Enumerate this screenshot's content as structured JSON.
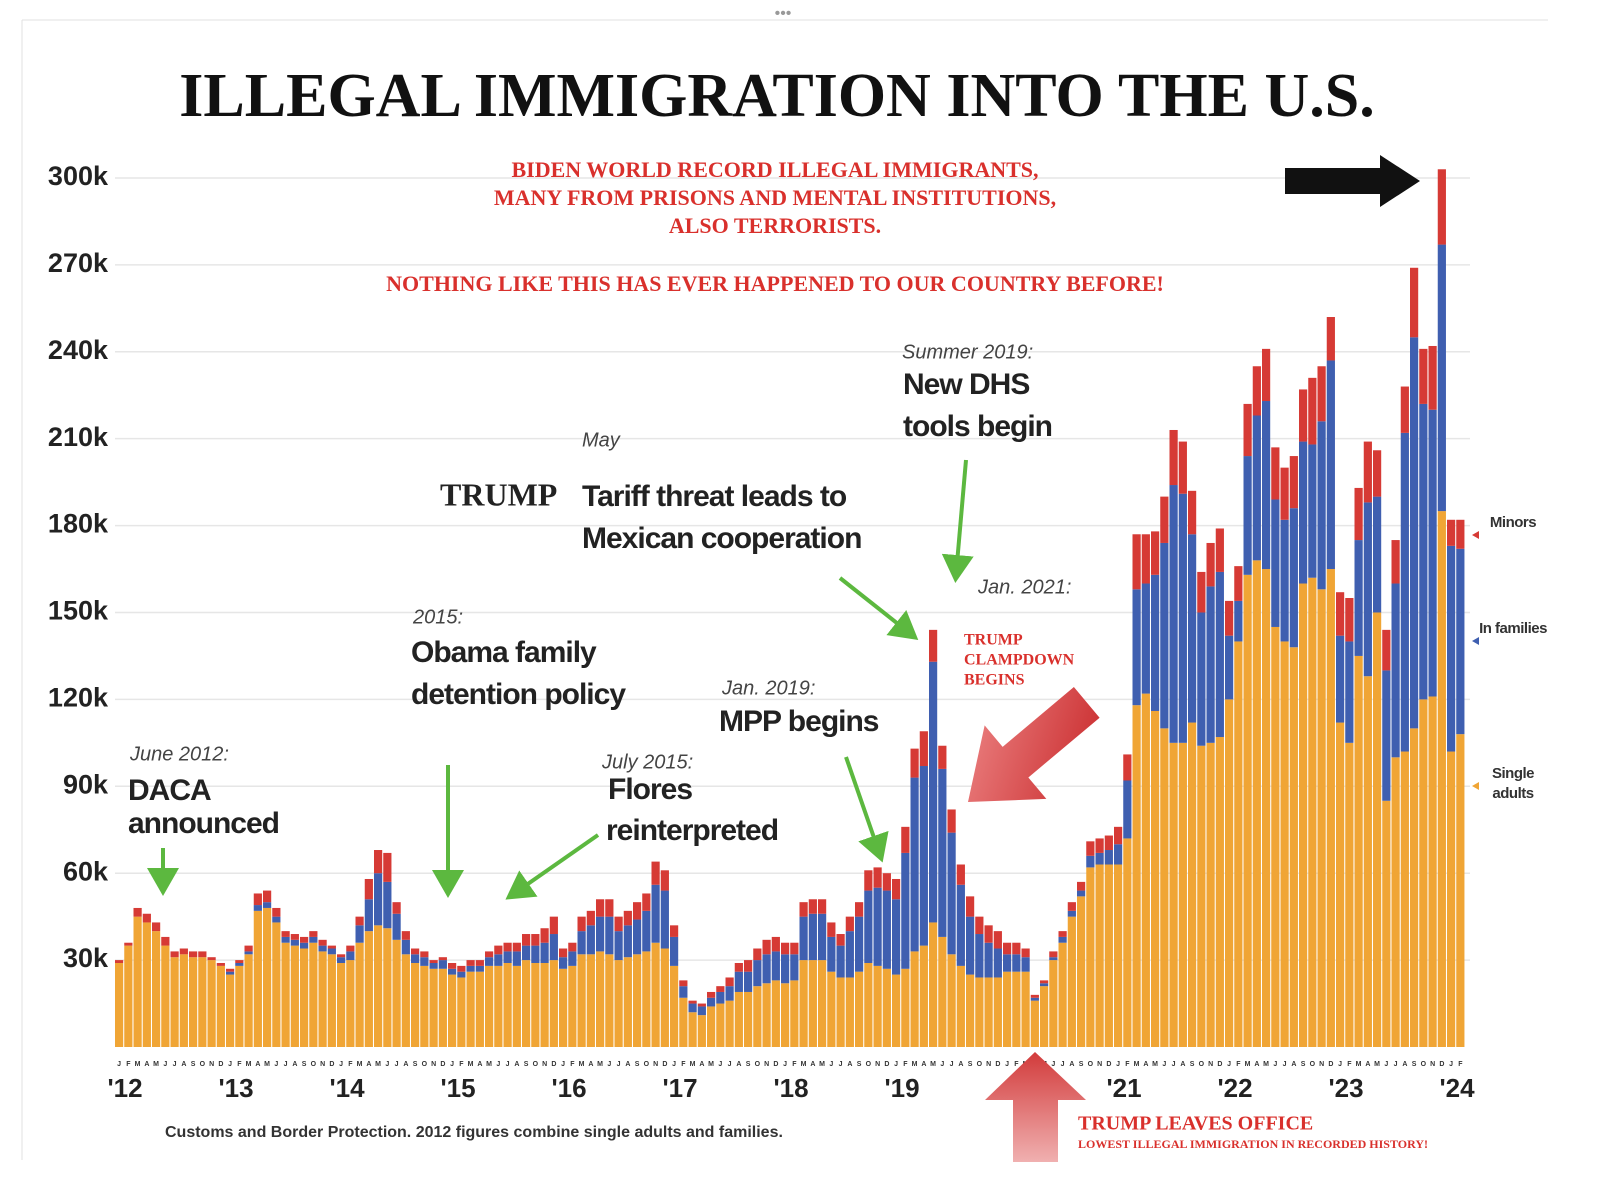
{
  "chart_data": {
    "type": "stacked-bar",
    "title": "ILLEGAL IMMIGRATION INTO THE U.S.",
    "source": "Customs and Border Protection. 2012 figures combine single adults and families.",
    "annotations": [
      "BIDEN WORLD RECORD ILLEGAL IMMIGRANTS,",
      "MANY FROM PRISONS AND MENTAL INSTITUTIONS,",
      "ALSO TERRORISTS.",
      "NOTHING LIKE THIS HAS EVER HAPPENED TO OUR COUNTRY BEFORE!",
      "June 2012:",
      "DACA",
      "announced",
      "2015:",
      "Obama family",
      "detention policy",
      "July 2015:",
      "Flores",
      "reinterpreted",
      "May",
      "TRUMP",
      "Tariff threat leads to",
      "Mexican cooperation",
      "Jan. 2019:",
      "MPP begins",
      "Summer 2019:",
      "New DHS",
      "tools begin",
      "Jan. 2021:",
      "TRUMP",
      "CLAMPDOWN",
      "BEGINS",
      "TRUMP LEAVES OFFICE",
      "LOWEST ILLEGAL IMMIGRATION IN RECORDED HISTORY!"
    ],
    "categories": [
      "J",
      "F",
      "M",
      "A",
      "M",
      "J",
      "J",
      "A",
      "S",
      "O",
      "N",
      "D",
      "J",
      "F",
      "M",
      "A",
      "M",
      "J",
      "J",
      "A",
      "S",
      "O",
      "N",
      "D",
      "J",
      "F",
      "M",
      "A",
      "M",
      "J",
      "J",
      "A",
      "S",
      "O",
      "N",
      "D",
      "J",
      "F",
      "M",
      "A",
      "M",
      "J",
      "J",
      "A",
      "S",
      "O",
      "N",
      "D",
      "J",
      "F",
      "M",
      "A",
      "M",
      "J",
      "J",
      "A",
      "S",
      "O",
      "N",
      "D",
      "J",
      "F",
      "M",
      "A",
      "M",
      "J",
      "J",
      "A",
      "S",
      "O",
      "N",
      "D",
      "J",
      "F",
      "M",
      "A",
      "M",
      "J",
      "J",
      "A",
      "S",
      "O",
      "N",
      "D",
      "J",
      "F",
      "M",
      "A",
      "M",
      "J",
      "J",
      "A",
      "S",
      "O",
      "N",
      "D",
      "J",
      "F",
      "M",
      "A",
      "M",
      "J",
      "J",
      "A",
      "S",
      "O",
      "N",
      "D",
      "J",
      "F",
      "M",
      "A",
      "M",
      "J",
      "J",
      "A",
      "S",
      "O",
      "N",
      "D",
      "J",
      "F",
      "M",
      "A",
      "M",
      "J",
      "J",
      "A",
      "S",
      "O",
      "N",
      "D",
      "J",
      "F",
      "M",
      "A",
      "M",
      "J",
      "J",
      "A",
      "S",
      "O",
      "N",
      "D",
      "J",
      "F"
    ],
    "year_labels": [
      "'12",
      "'13",
      "'14",
      "'15",
      "'16",
      "'17",
      "'18",
      "'19",
      null,
      "'21",
      "'22",
      "'23",
      "'24"
    ],
    "series": [
      {
        "name": "Single adults",
        "color": "#f0a535",
        "values": [
          29,
          35,
          45,
          43,
          40,
          35,
          31,
          32,
          31,
          31,
          30,
          28,
          25,
          28,
          32,
          47,
          48,
          43,
          36,
          35,
          34,
          36,
          33,
          32,
          29,
          30,
          36,
          40,
          42,
          41,
          37,
          32,
          29,
          28,
          27,
          27,
          25,
          24,
          26,
          26,
          28,
          28,
          29,
          28,
          30,
          29,
          29,
          30,
          27,
          28,
          32,
          32,
          33,
          32,
          30,
          31,
          32,
          33,
          36,
          34,
          28,
          17,
          12,
          11,
          14,
          15,
          16,
          19,
          19,
          21,
          22,
          23,
          22,
          23,
          30,
          30,
          30,
          26,
          24,
          24,
          26,
          29,
          28,
          27,
          25,
          27,
          33,
          35,
          43,
          38,
          32,
          28,
          25,
          24,
          24,
          24,
          26,
          26,
          26,
          16,
          21,
          30,
          36,
          45,
          52,
          62,
          63,
          63,
          63,
          72,
          118,
          122,
          116,
          110,
          105,
          105,
          112,
          104,
          105,
          107,
          120,
          140,
          163,
          168,
          165,
          145,
          140,
          138,
          160,
          162,
          158,
          165,
          112,
          105,
          135,
          128,
          150,
          85,
          100,
          102,
          110,
          120,
          121,
          185,
          102,
          108
        ]
      },
      {
        "name": "In families",
        "color": "#3f5fb0",
        "values": [
          0,
          0,
          0,
          0,
          0,
          0,
          0,
          0,
          0,
          0,
          0,
          0,
          1,
          1,
          1,
          2,
          2,
          2,
          2,
          2,
          2,
          2,
          2,
          2,
          2,
          3,
          6,
          11,
          18,
          16,
          9,
          5,
          3,
          3,
          2,
          3,
          2,
          2,
          2,
          2,
          3,
          4,
          4,
          5,
          5,
          6,
          7,
          9,
          4,
          5,
          8,
          10,
          12,
          13,
          10,
          11,
          12,
          14,
          20,
          20,
          10,
          4,
          3,
          3,
          3,
          4,
          5,
          7,
          7,
          9,
          10,
          10,
          10,
          9,
          15,
          16,
          16,
          12,
          11,
          16,
          19,
          25,
          27,
          27,
          26,
          40,
          60,
          62,
          90,
          58,
          42,
          28,
          20,
          15,
          12,
          10,
          6,
          6,
          5,
          1,
          1,
          1,
          2,
          2,
          2,
          4,
          4,
          5,
          7,
          20,
          40,
          38,
          47,
          64,
          89,
          86,
          65,
          46,
          54,
          57,
          22,
          14,
          41,
          50,
          58,
          44,
          42,
          48,
          49,
          46,
          58,
          72,
          30,
          35,
          40,
          60,
          40,
          45,
          60,
          110,
          135,
          102,
          99,
          92,
          71,
          64
        ]
      },
      {
        "name": "Minors",
        "color": "#d63a35",
        "values": [
          1,
          1,
          3,
          3,
          3,
          3,
          2,
          2,
          2,
          2,
          1,
          1,
          1,
          1,
          2,
          4,
          4,
          3,
          2,
          2,
          2,
          2,
          2,
          1,
          1,
          2,
          3,
          7,
          8,
          10,
          4,
          3,
          2,
          2,
          1,
          1,
          2,
          2,
          2,
          2,
          2,
          3,
          3,
          3,
          4,
          4,
          5,
          6,
          3,
          3,
          5,
          5,
          6,
          6,
          5,
          5,
          6,
          6,
          8,
          7,
          4,
          2,
          1,
          1,
          2,
          2,
          3,
          3,
          4,
          4,
          5,
          5,
          4,
          4,
          5,
          5,
          5,
          5,
          4,
          5,
          5,
          7,
          7,
          6,
          7,
          9,
          10,
          12,
          11,
          8,
          8,
          7,
          7,
          6,
          6,
          6,
          4,
          4,
          3,
          1,
          1,
          2,
          2,
          3,
          3,
          5,
          5,
          5,
          6,
          9,
          19,
          17,
          15,
          16,
          19,
          18,
          15,
          14,
          15,
          15,
          12,
          12,
          18,
          17,
          18,
          18,
          18,
          18,
          18,
          23,
          19,
          15,
          15,
          15,
          18,
          21,
          16,
          14,
          15,
          16,
          24,
          19,
          22,
          26,
          9,
          10
        ]
      }
    ],
    "ylim": [
      0,
      310
    ],
    "yticks": [
      {
        "value": 30,
        "label": "30k"
      },
      {
        "value": 60,
        "label": "60k"
      },
      {
        "value": 90,
        "label": "90k"
      },
      {
        "value": 120,
        "label": "120k"
      },
      {
        "value": 150,
        "label": "150k"
      },
      {
        "value": 180,
        "label": "180k"
      },
      {
        "value": 210,
        "label": "210k"
      },
      {
        "value": 240,
        "label": "240k"
      },
      {
        "value": 270,
        "label": "270k"
      },
      {
        "value": 300,
        "label": "300k"
      }
    ],
    "grid": true
  }
}
